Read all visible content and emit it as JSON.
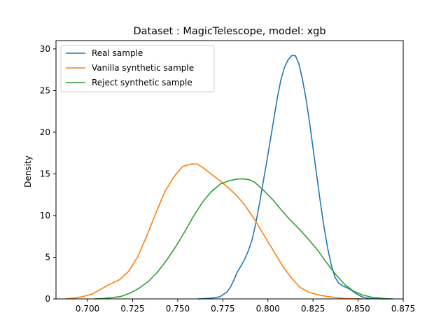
{
  "chart_data": {
    "type": "line",
    "title": "Dataset : MagicTelescope, model: xgb",
    "xlabel": "",
    "ylabel": "Density",
    "xlim": [
      0.6825,
      0.875
    ],
    "ylim": [
      0,
      31
    ],
    "x_ticks": [
      0.7,
      0.725,
      0.75,
      0.775,
      0.8,
      0.825,
      0.85,
      0.875
    ],
    "x_tick_labels": [
      "0.700",
      "0.725",
      "0.750",
      "0.775",
      "0.800",
      "0.825",
      "0.850",
      "0.875"
    ],
    "y_ticks": [
      0,
      5,
      10,
      15,
      20,
      25,
      30
    ],
    "y_tick_labels": [
      "0",
      "5",
      "10",
      "15",
      "20",
      "25",
      "30"
    ],
    "grid": false,
    "legend_position": "upper-left",
    "series": [
      {
        "name": "Real sample",
        "color": "#1f77b4",
        "x": [
          0.7612,
          0.7652,
          0.7692,
          0.7732,
          0.7772,
          0.7792,
          0.7812,
          0.7832,
          0.7852,
          0.7872,
          0.7892,
          0.7912,
          0.7932,
          0.7952,
          0.7972,
          0.7992,
          0.8012,
          0.8032,
          0.8052,
          0.8072,
          0.8092,
          0.8112,
          0.8132,
          0.8152,
          0.8172,
          0.8192,
          0.8212,
          0.8232,
          0.8252,
          0.8272,
          0.8292,
          0.8312,
          0.8332,
          0.8352,
          0.8372,
          0.8392,
          0.8412,
          0.8432,
          0.8452,
          0.8472,
          0.8492,
          0.8512,
          0.8532,
          0.8552,
          0.8572,
          0.8592,
          0.8612,
          0.8652,
          0.8692
        ],
        "values": [
          0.0,
          0.05,
          0.1,
          0.25,
          0.8,
          1.4,
          2.3,
          3.3,
          4.0,
          4.8,
          5.8,
          7.1,
          9.0,
          11.3,
          13.8,
          16.3,
          18.9,
          21.5,
          24.1,
          26.3,
          27.8,
          28.7,
          29.2,
          29.2,
          28.2,
          26.3,
          23.9,
          21.0,
          17.8,
          14.6,
          11.4,
          8.5,
          6.0,
          4.0,
          2.6,
          1.9,
          1.6,
          1.4,
          1.2,
          0.9,
          0.6,
          0.35,
          0.18,
          0.08,
          0.04,
          0.02,
          0.01,
          0.0,
          0.0
        ]
      },
      {
        "name": "Vanilla synthetic sample",
        "color": "#ff7f0e",
        "x": [
          0.6877,
          0.6927,
          0.6977,
          0.7027,
          0.7077,
          0.7127,
          0.7177,
          0.7227,
          0.7277,
          0.7327,
          0.7377,
          0.7427,
          0.7477,
          0.7527,
          0.7577,
          0.7607,
          0.7637,
          0.7667,
          0.7697,
          0.7727,
          0.7777,
          0.7827,
          0.7877,
          0.7927,
          0.7977,
          0.8027,
          0.8077,
          0.8127,
          0.8177,
          0.8227,
          0.8277,
          0.8327,
          0.8377,
          0.8427,
          0.8477,
          0.8527
        ],
        "values": [
          0.0,
          0.1,
          0.3,
          0.6,
          1.2,
          1.8,
          2.3,
          3.3,
          5.0,
          7.5,
          10.2,
          12.8,
          14.6,
          15.9,
          16.2,
          16.2,
          15.8,
          15.3,
          14.8,
          14.3,
          13.4,
          12.4,
          11.1,
          9.5,
          7.7,
          5.9,
          4.1,
          2.6,
          1.4,
          0.8,
          0.5,
          0.3,
          0.15,
          0.05,
          0.02,
          0.0
        ]
      },
      {
        "name": "Reject synthetic sample",
        "color": "#2ca02c",
        "x": [
          0.7037,
          0.7087,
          0.7137,
          0.7187,
          0.7237,
          0.7287,
          0.7337,
          0.7387,
          0.7437,
          0.7487,
          0.7537,
          0.7587,
          0.7637,
          0.7687,
          0.7737,
          0.7787,
          0.7837,
          0.7867,
          0.7897,
          0.7927,
          0.7977,
          0.8027,
          0.8077,
          0.8127,
          0.8177,
          0.8227,
          0.8277,
          0.8327,
          0.8377,
          0.8427,
          0.8477,
          0.8527,
          0.8577,
          0.8627,
          0.8677
        ],
        "values": [
          0.0,
          0.05,
          0.15,
          0.3,
          0.7,
          1.3,
          2.1,
          3.2,
          4.6,
          6.2,
          8.0,
          9.9,
          11.6,
          12.9,
          13.8,
          14.2,
          14.4,
          14.4,
          14.3,
          14.0,
          13.0,
          11.9,
          10.6,
          9.4,
          8.3,
          7.1,
          5.8,
          4.3,
          2.9,
          1.7,
          0.9,
          0.45,
          0.2,
          0.08,
          0.0
        ]
      }
    ]
  }
}
